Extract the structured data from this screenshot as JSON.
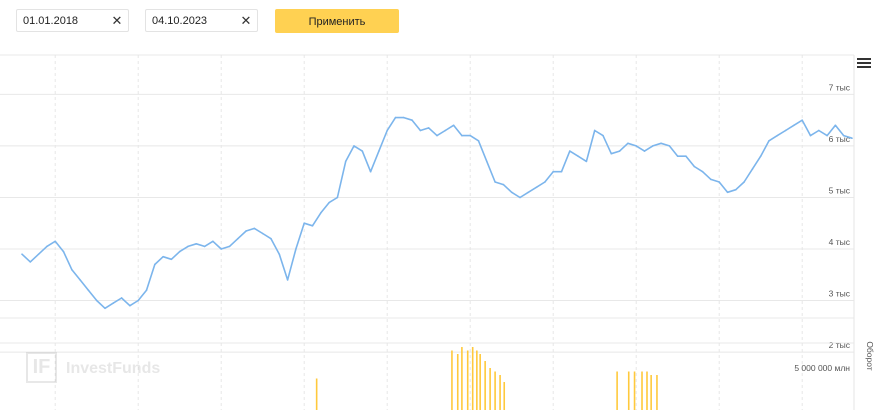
{
  "filters": {
    "date_from": "01.01.2018",
    "date_to": "04.10.2023",
    "clear_glyph": "✕",
    "apply_label": "Применить",
    "apply_color": "#ffd152"
  },
  "watermark": {
    "icon_letters": "IF",
    "text": "InvestFunds"
  },
  "menu": {
    "icon": "hamburger-menu-icon"
  },
  "chart_data": {
    "type": "line",
    "y_axis": {
      "ticks": [
        {
          "value": 2000,
          "label": "2 тыс"
        },
        {
          "value": 3000,
          "label": "3 тыс"
        },
        {
          "value": 4000,
          "label": "4 тыс"
        },
        {
          "value": 5000,
          "label": "5 тыс"
        },
        {
          "value": 6000,
          "label": "6 тыс"
        },
        {
          "value": 7000,
          "label": "7 тыс"
        }
      ],
      "range": [
        1400,
        7900
      ]
    },
    "x_range": [
      0,
      100
    ],
    "vertical_gridlines_x": [
      4,
      14,
      24,
      34,
      44,
      54,
      64,
      74,
      84,
      94
    ],
    "price_series": {
      "color": "#7cb5ec",
      "points": [
        [
          0,
          3900
        ],
        [
          1,
          3750
        ],
        [
          2,
          3900
        ],
        [
          3,
          4050
        ],
        [
          4,
          4150
        ],
        [
          5,
          3950
        ],
        [
          6,
          3600
        ],
        [
          7,
          3400
        ],
        [
          8,
          3200
        ],
        [
          9,
          3000
        ],
        [
          10,
          2850
        ],
        [
          11,
          2950
        ],
        [
          12,
          3050
        ],
        [
          13,
          2900
        ],
        [
          14,
          3000
        ],
        [
          15,
          3200
        ],
        [
          16,
          3700
        ],
        [
          17,
          3850
        ],
        [
          18,
          3800
        ],
        [
          19,
          3950
        ],
        [
          20,
          4050
        ],
        [
          21,
          4100
        ],
        [
          22,
          4050
        ],
        [
          23,
          4150
        ],
        [
          24,
          4000
        ],
        [
          25,
          4050
        ],
        [
          26,
          4200
        ],
        [
          27,
          4350
        ],
        [
          28,
          4400
        ],
        [
          29,
          4300
        ],
        [
          30,
          4200
        ],
        [
          31,
          3900
        ],
        [
          32,
          3400
        ],
        [
          33,
          4000
        ],
        [
          34,
          4500
        ],
        [
          35,
          4450
        ],
        [
          36,
          4700
        ],
        [
          37,
          4900
        ],
        [
          38,
          5000
        ],
        [
          39,
          5700
        ],
        [
          40,
          6000
        ],
        [
          41,
          5900
        ],
        [
          42,
          5500
        ],
        [
          43,
          5900
        ],
        [
          44,
          6300
        ],
        [
          45,
          6550
        ],
        [
          46,
          6550
        ],
        [
          47,
          6500
        ],
        [
          48,
          6300
        ],
        [
          49,
          6350
        ],
        [
          50,
          6200
        ],
        [
          51,
          6300
        ],
        [
          52,
          6400
        ],
        [
          53,
          6200
        ],
        [
          54,
          6200
        ],
        [
          55,
          6100
        ],
        [
          56,
          5700
        ],
        [
          57,
          5300
        ],
        [
          58,
          5250
        ],
        [
          59,
          5100
        ],
        [
          60,
          5000
        ],
        [
          61,
          5100
        ],
        [
          62,
          5200
        ],
        [
          63,
          5300
        ],
        [
          64,
          5500
        ],
        [
          65,
          5500
        ],
        [
          66,
          5900
        ],
        [
          67,
          5800
        ],
        [
          68,
          5700
        ],
        [
          69,
          6300
        ],
        [
          70,
          6200
        ],
        [
          71,
          5850
        ],
        [
          72,
          5900
        ],
        [
          73,
          6050
        ],
        [
          74,
          6000
        ],
        [
          75,
          5900
        ],
        [
          76,
          6000
        ],
        [
          77,
          6050
        ],
        [
          78,
          6000
        ],
        [
          79,
          5800
        ],
        [
          80,
          5800
        ],
        [
          81,
          5600
        ],
        [
          82,
          5500
        ],
        [
          83,
          5350
        ],
        [
          84,
          5300
        ],
        [
          85,
          5100
        ],
        [
          86,
          5150
        ],
        [
          87,
          5300
        ],
        [
          88,
          5550
        ],
        [
          89,
          5800
        ],
        [
          90,
          6100
        ],
        [
          91,
          6200
        ],
        [
          92,
          6300
        ],
        [
          93,
          6400
        ],
        [
          94,
          6500
        ],
        [
          95,
          6200
        ],
        [
          96,
          6300
        ],
        [
          97,
          6200
        ],
        [
          98,
          6400
        ],
        [
          99,
          6200
        ],
        [
          100,
          6150
        ]
      ]
    },
    "volume_series": {
      "axis_label": "Оборот",
      "tick_label": "5 000 000 млн",
      "color": "#ffc93c",
      "bars": [
        [
          35.5,
          0.45
        ],
        [
          51.8,
          0.85
        ],
        [
          52.5,
          0.8
        ],
        [
          53.0,
          0.9
        ],
        [
          53.7,
          0.85
        ],
        [
          54.3,
          0.9
        ],
        [
          54.8,
          0.85
        ],
        [
          55.2,
          0.8
        ],
        [
          55.8,
          0.7
        ],
        [
          56.4,
          0.6
        ],
        [
          57.0,
          0.55
        ],
        [
          57.6,
          0.5
        ],
        [
          58.1,
          0.4
        ],
        [
          71.7,
          0.55
        ],
        [
          73.1,
          0.55
        ],
        [
          73.8,
          0.55
        ],
        [
          74.7,
          0.55
        ],
        [
          75.3,
          0.55
        ],
        [
          75.8,
          0.5
        ],
        [
          76.5,
          0.5
        ]
      ]
    }
  }
}
